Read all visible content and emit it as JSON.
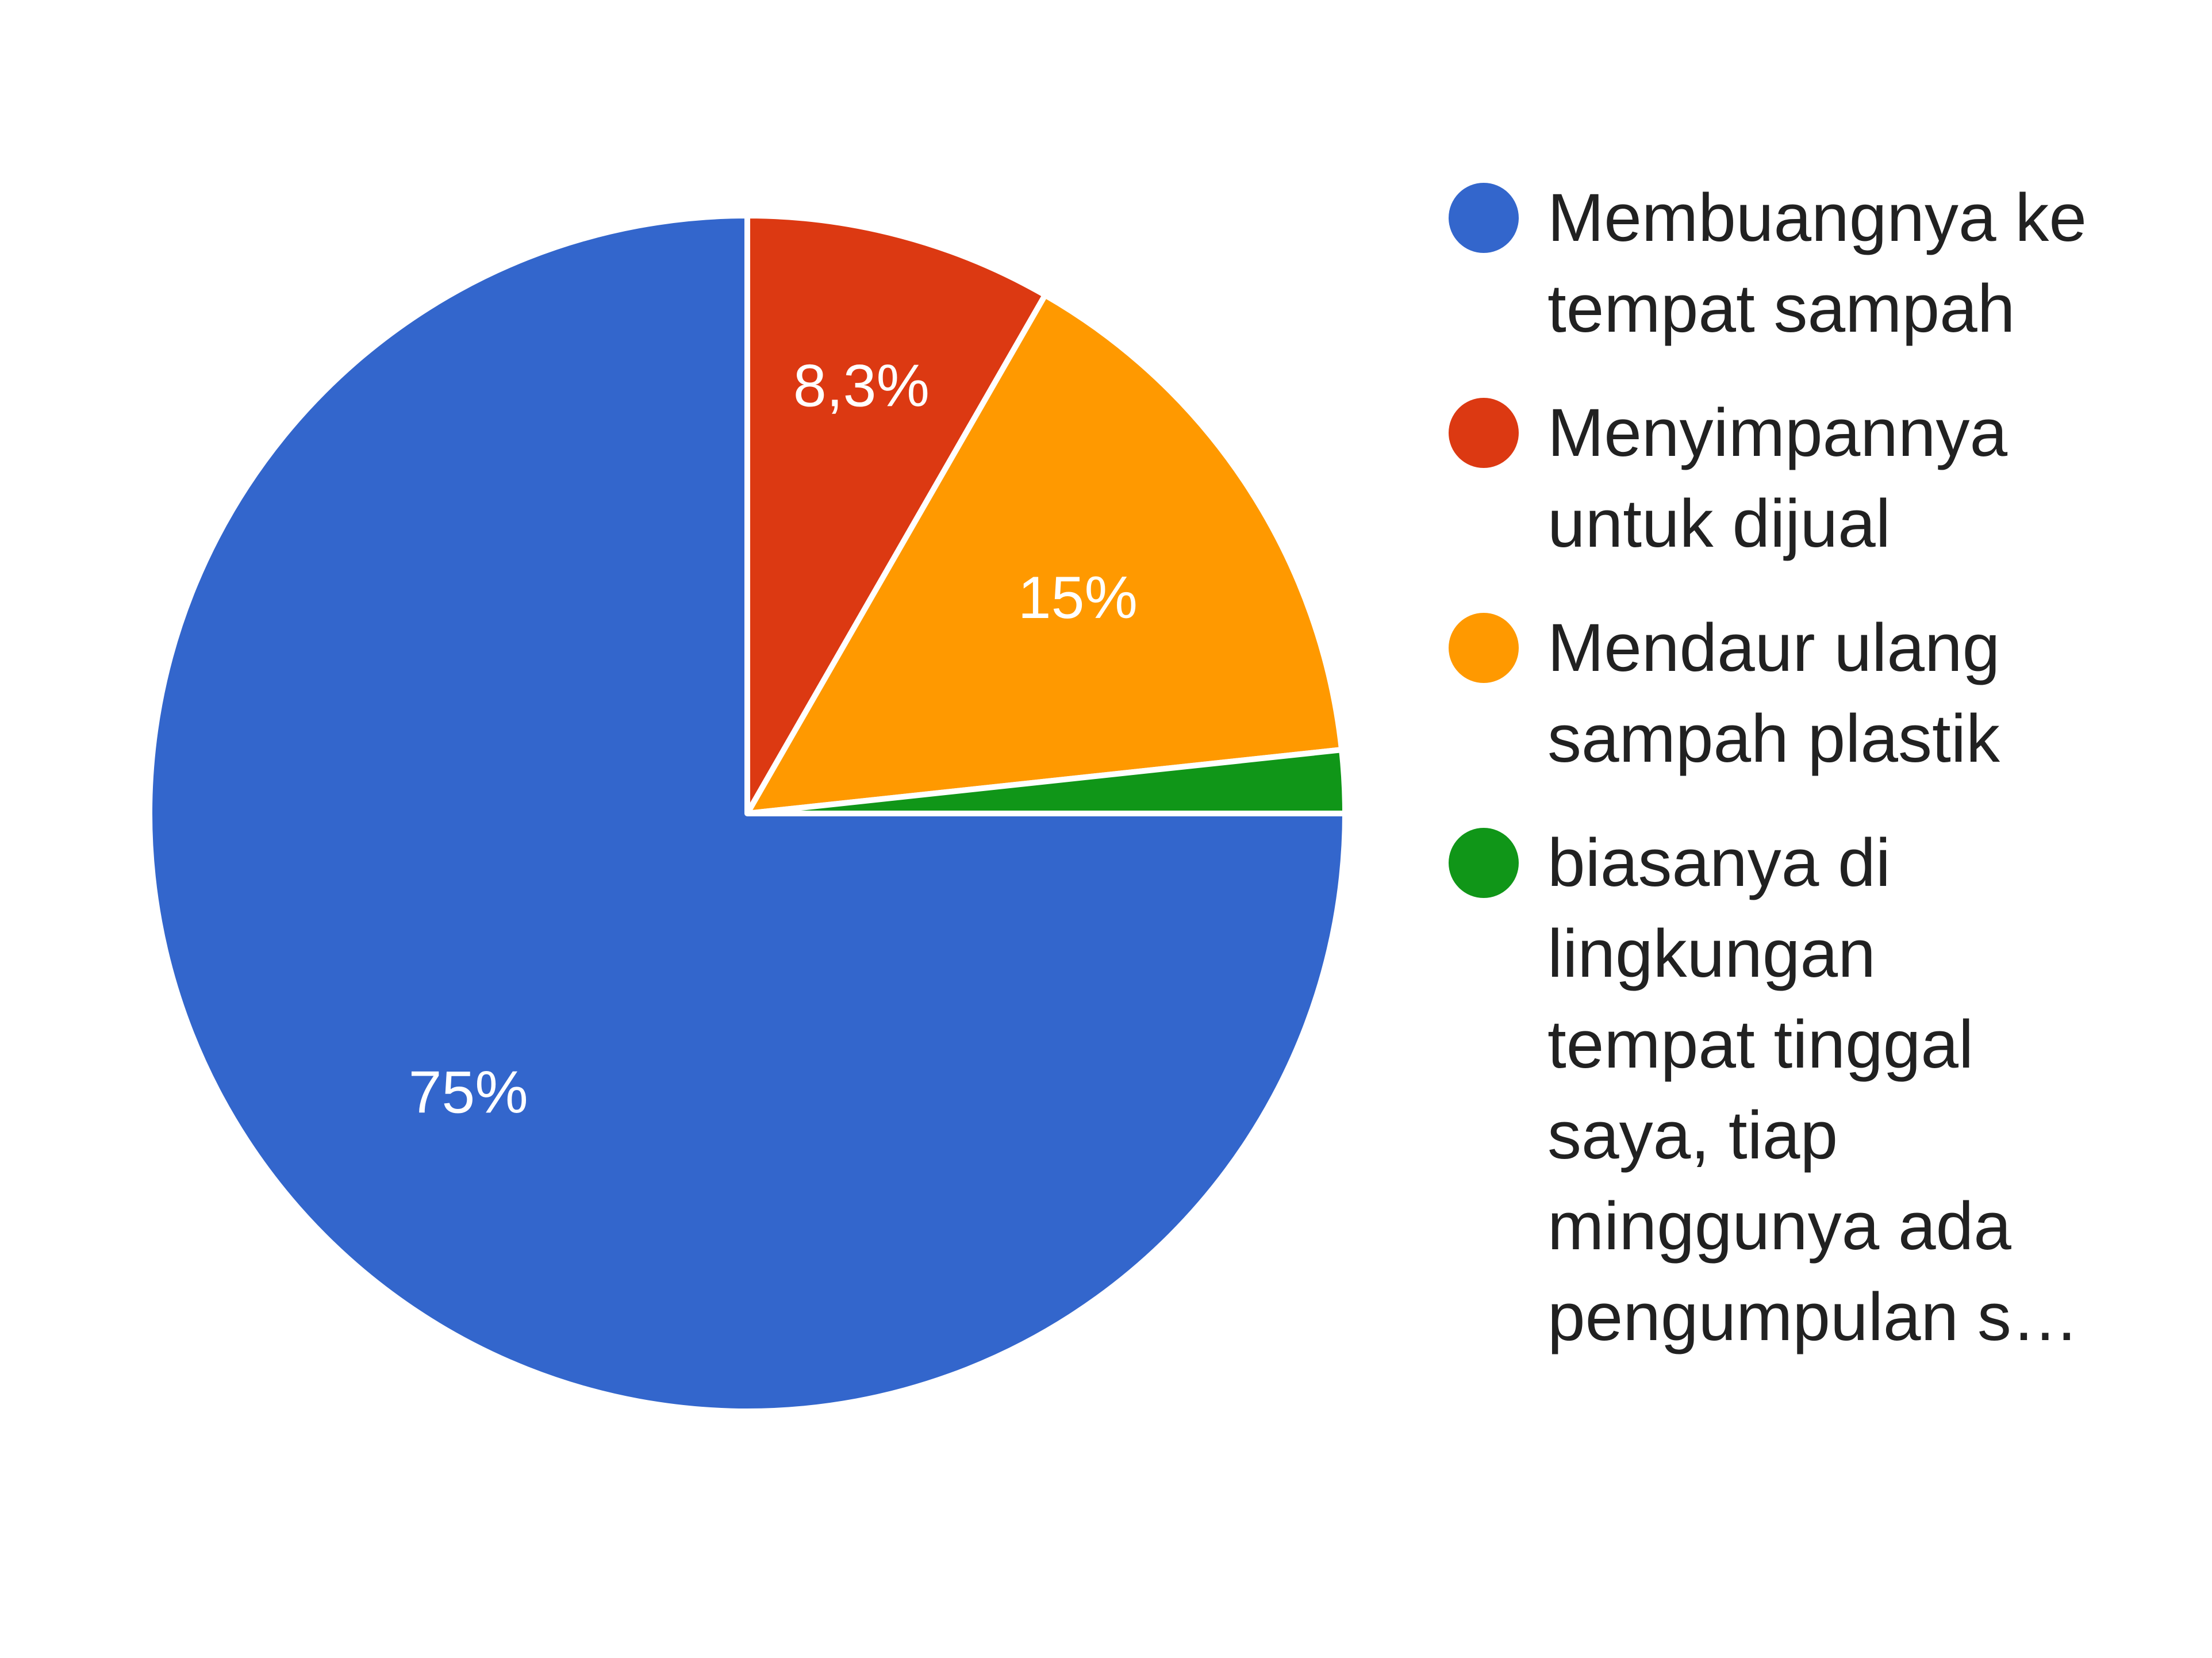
{
  "chart_data": {
    "type": "pie",
    "start_angle_deg": 0,
    "direction": "clockwise",
    "slices": [
      {
        "label": "Menyimpannya untuk dijual",
        "value": 8.3,
        "value_label": "8,3%",
        "color": "#DC3912"
      },
      {
        "label": "Mendaur ulang sampah plastik",
        "value": 15,
        "value_label": "15%",
        "color": "#FF9900"
      },
      {
        "label": "biasanya di lingkungan tempat tinggal saya, tiap minggunya ada pengumpulan s…",
        "value": 1.7,
        "value_label": "",
        "color": "#109618"
      },
      {
        "label": "Membuangnya ke tempat sampah",
        "value": 75,
        "value_label": "75%",
        "color": "#3366CC"
      }
    ],
    "legend": [
      {
        "label": "Membuangnya ke tempat sampah",
        "color": "#3366CC",
        "icon": "circle-icon"
      },
      {
        "label": "Menyimpannya untuk dijual",
        "color": "#DC3912",
        "icon": "circle-icon"
      },
      {
        "label": "Mendaur ulang sampah plastik",
        "color": "#FF9900",
        "icon": "circle-icon"
      },
      {
        "label": "biasanya di lingkungan tempat tinggal saya, tiap minggunya ada pengumpulan s…",
        "color": "#109618",
        "icon": "circle-icon"
      }
    ],
    "legend_position": "right"
  }
}
